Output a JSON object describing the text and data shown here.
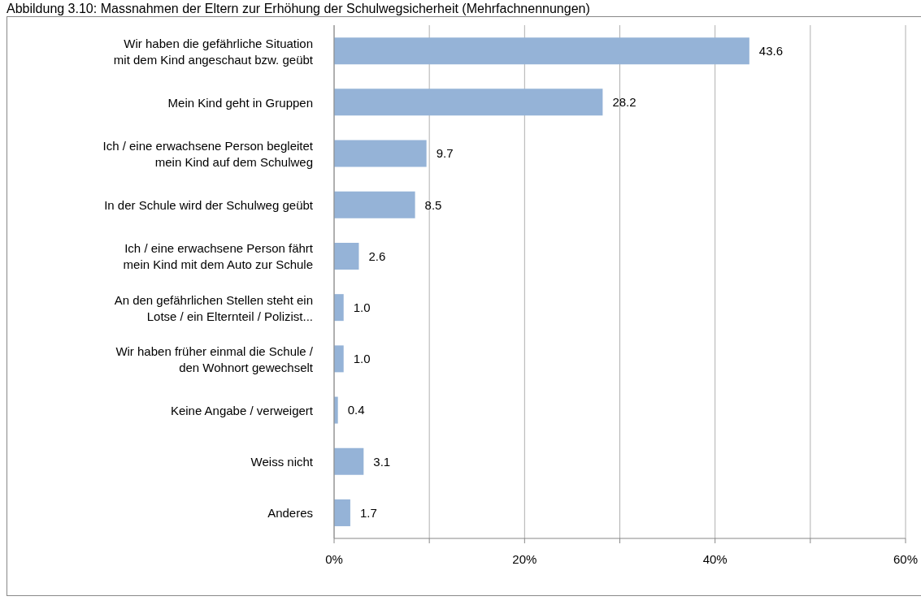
{
  "chart_data": {
    "type": "bar",
    "orientation": "horizontal",
    "title": "Abbildung 3.10: Massnahmen der Eltern zur Erhöhung der Schulwegsicherheit (Mehrfachnennungen)",
    "categories": [
      "Wir haben die gefährliche Situation mit dem Kind angeschaut bzw. geübt",
      "Mein Kind geht in Gruppen",
      "Ich / eine erwachsene Person begleitet mein Kind auf dem Schulweg",
      "In der Schule wird der Schulweg geübt",
      "Ich / eine erwachsene Person fährt mein Kind mit dem Auto zur Schule",
      "An den gefährlichen Stellen steht ein Lotse / ein Elternteil / Polizist...",
      "Wir haben früher einmal die Schule / den Wohnort gewechselt",
      "Keine Angabe / verweigert",
      "Weiss nicht",
      "Anderes"
    ],
    "values": [
      43.6,
      28.2,
      9.7,
      8.5,
      2.6,
      1.0,
      1.0,
      0.4,
      3.1,
      1.7
    ],
    "value_labels": [
      "43.6",
      "28.2",
      "9.7",
      "8.5",
      "2.6",
      "1.0",
      "1.0",
      "0.4",
      "3.1",
      "1.7"
    ],
    "color": "#95b3d7",
    "xlim": [
      0,
      60
    ],
    "xticks": [
      {
        "value": 0,
        "label": "0%"
      },
      {
        "value": 10,
        "label": null
      },
      {
        "value": 20,
        "label": "20%"
      },
      {
        "value": 30,
        "label": null
      },
      {
        "value": 40,
        "label": "40%"
      },
      {
        "value": 50,
        "label": null
      },
      {
        "value": 60,
        "label": "60%"
      }
    ],
    "grid": "x"
  }
}
